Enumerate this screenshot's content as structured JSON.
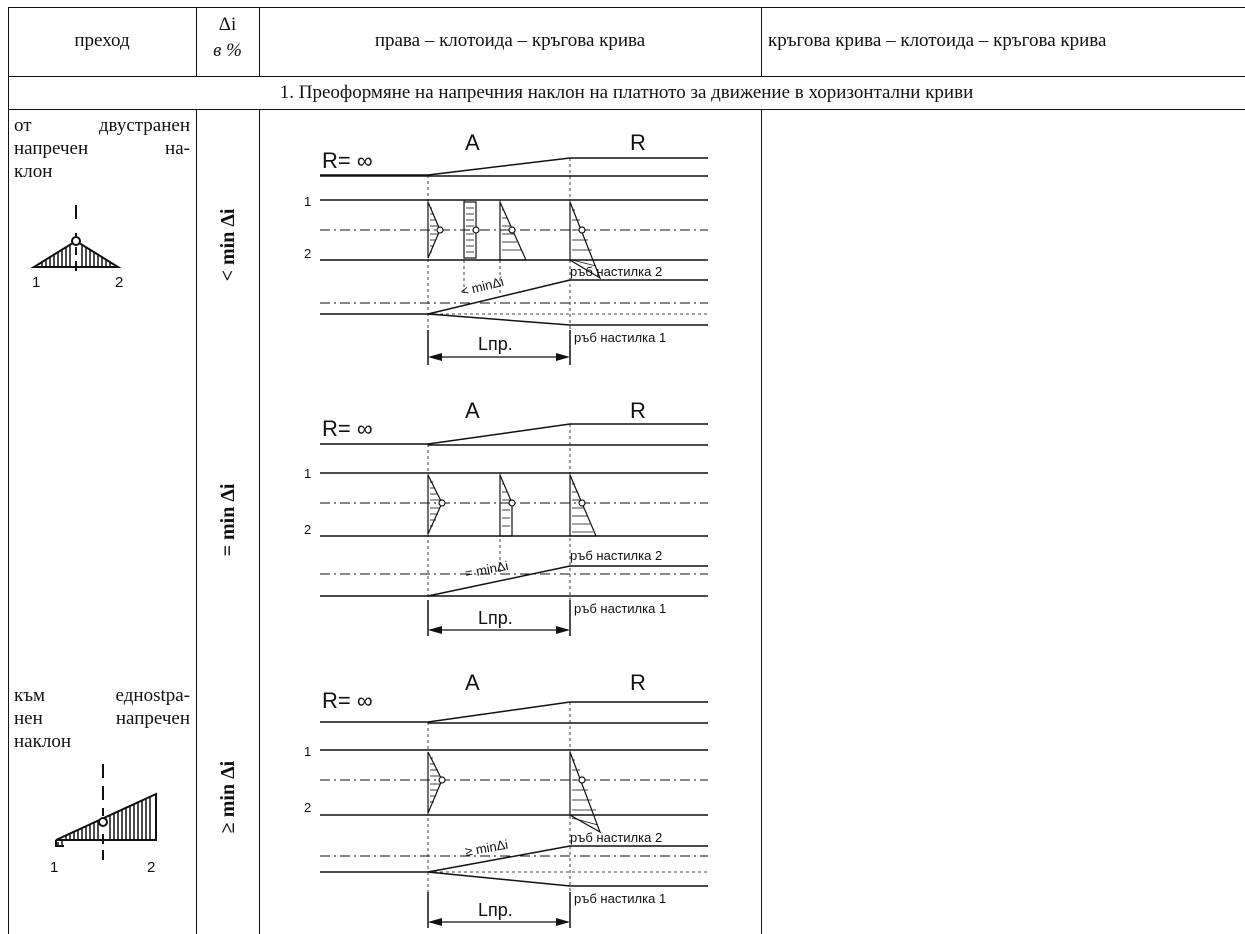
{
  "header": {
    "col_transition": "преход",
    "col_delta_top": "Δi",
    "col_delta_bottom": "в %",
    "col_straight": "права – клотоида – кръгова крива",
    "col_circular": "кръгова  крива – клотоида – кръгова  крива"
  },
  "section_title": "1. Преоформяне на напречния наклон на платното за движение в хоризонтални криви",
  "rows": [
    {
      "transition_lines": [
        "от  двустранен",
        "напречен    на-",
        "клон"
      ],
      "delta": "< min Δi",
      "diagram": {
        "radius_left": "R= ∞",
        "clothoid": "A",
        "radius_right": "R",
        "lane1": "1",
        "lane2": "2",
        "slope_label": "< minΔi",
        "edge2": "ръб  настилка 2",
        "edge1": "ръб  настилка 1",
        "length": "Lпр."
      },
      "icon_labels": [
        "1",
        "2"
      ]
    },
    {
      "transition_lines": [],
      "delta": "= min Δi",
      "diagram": {
        "radius_left": "R= ∞",
        "clothoid": "A",
        "radius_right": "R",
        "lane1": "1",
        "lane2": "2",
        "slope_label": "= minΔi",
        "edge2": "ръб  настилка 2",
        "edge1": "ръб  настилка 1",
        "length": "Lпр."
      }
    },
    {
      "transition_lines": [
        "към  еднostра-",
        "нен   напречен",
        "наклон"
      ],
      "delta": "≥ min Δi",
      "diagram": {
        "radius_left": "R= ∞",
        "clothoid": "A",
        "radius_right": "R",
        "lane1": "1",
        "lane2": "2",
        "slope_label": "≥ minΔi",
        "edge2": "ръб  настилка 2",
        "edge1": "ръб  настилка 1",
        "length": "Lпр."
      },
      "icon_labels": [
        "1",
        "2"
      ]
    }
  ]
}
